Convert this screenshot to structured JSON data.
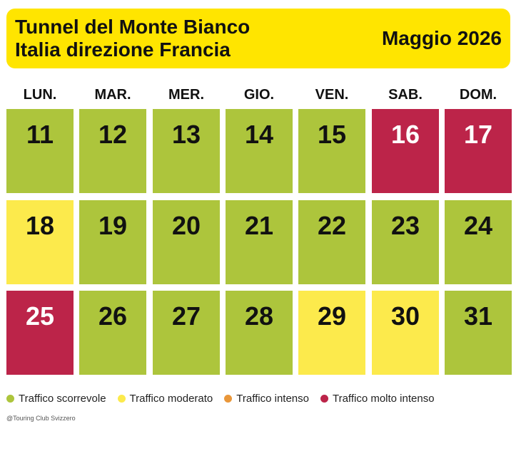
{
  "header": {
    "title_line1": "Tunnel del Monte Bianco",
    "title_line2": "Italia direzione Francia",
    "month": "Maggio 2026"
  },
  "colors": {
    "header_bg": "#ffe500",
    "scorrevole": "#adc53c",
    "moderato": "#fcea4c",
    "intenso": "#e9973a",
    "molto_intenso": "#bc2449"
  },
  "weekdays": [
    "LUN.",
    "MAR.",
    "MER.",
    "GIO.",
    "VEN.",
    "SAB.",
    "DOM."
  ],
  "weeks": [
    [
      {
        "day": "11",
        "traffic": "scorrevole"
      },
      {
        "day": "12",
        "traffic": "scorrevole"
      },
      {
        "day": "13",
        "traffic": "scorrevole"
      },
      {
        "day": "14",
        "traffic": "scorrevole"
      },
      {
        "day": "15",
        "traffic": "scorrevole"
      },
      {
        "day": "16",
        "traffic": "molto_intenso"
      },
      {
        "day": "17",
        "traffic": "molto_intenso"
      }
    ],
    [
      {
        "day": "18",
        "traffic": "moderato"
      },
      {
        "day": "19",
        "traffic": "scorrevole"
      },
      {
        "day": "20",
        "traffic": "scorrevole"
      },
      {
        "day": "21",
        "traffic": "scorrevole"
      },
      {
        "day": "22",
        "traffic": "scorrevole"
      },
      {
        "day": "23",
        "traffic": "scorrevole"
      },
      {
        "day": "24",
        "traffic": "scorrevole"
      }
    ],
    [
      {
        "day": "25",
        "traffic": "molto_intenso"
      },
      {
        "day": "26",
        "traffic": "scorrevole"
      },
      {
        "day": "27",
        "traffic": "scorrevole"
      },
      {
        "day": "28",
        "traffic": "scorrevole"
      },
      {
        "day": "29",
        "traffic": "moderato"
      },
      {
        "day": "30",
        "traffic": "moderato"
      },
      {
        "day": "31",
        "traffic": "scorrevole"
      }
    ]
  ],
  "legend": [
    {
      "key": "scorrevole",
      "label": "Traffico scorrevole"
    },
    {
      "key": "moderato",
      "label": "Traffico moderato"
    },
    {
      "key": "intenso",
      "label": "Traffico intenso"
    },
    {
      "key": "molto_intenso",
      "label": "Traffico molto intenso"
    }
  ],
  "credit": "@Touring Club Svizzero"
}
